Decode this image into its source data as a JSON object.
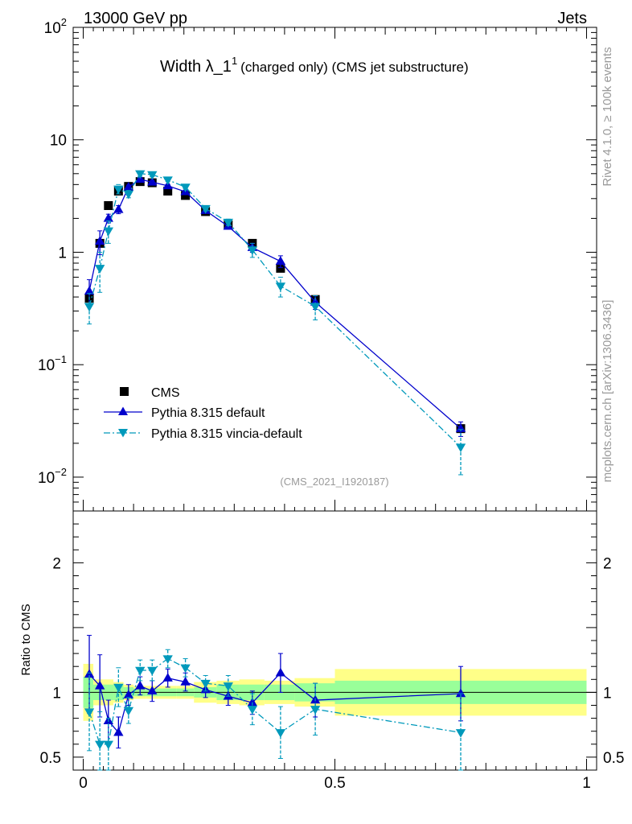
{
  "header": {
    "left": "13000 GeV pp",
    "right": "Jets"
  },
  "side_labels": {
    "rivet": "Rivet 4.1.0, ≥ 100k events",
    "mcplots": "mcplots.cern.ch [arXiv:1306.3436]"
  },
  "chart_data": {
    "type": "line",
    "title_main": "Width λ_1",
    "title_sup": "1",
    "title_rest": "(charged only) (CMS jet substructure)",
    "analysis_id": "(CMS_2021_I1920187)",
    "ylabel_ratio": "Ratio to CMS",
    "top": {
      "yscale": "log",
      "ylim": [
        0.005,
        100
      ],
      "y_ticks": [
        {
          "value": 100,
          "base": "10",
          "exp": "2"
        },
        {
          "value": 10,
          "base": "10",
          "exp": ""
        },
        {
          "value": 1,
          "base": "1",
          "exp": ""
        },
        {
          "value": 0.1,
          "base": "10",
          "exp": "−1"
        },
        {
          "value": 0.01,
          "base": "10",
          "exp": "−2"
        }
      ]
    },
    "ratio": {
      "ylim": [
        0.4,
        2.4
      ],
      "y_ticks": [
        {
          "value": 0.5,
          "label": "0.5"
        },
        {
          "value": 1,
          "label": "1"
        },
        {
          "value": 2,
          "label": "2"
        }
      ]
    },
    "xlim": [
      -0.02,
      1.02
    ],
    "x_ticks": [
      {
        "value": 0,
        "label": "0"
      },
      {
        "value": 0.5,
        "label": "0.5"
      },
      {
        "value": 1,
        "label": "1"
      }
    ],
    "bins": [
      [
        0,
        0.02
      ],
      [
        0.02,
        0.04
      ],
      [
        0.04,
        0.06
      ],
      [
        0.06,
        0.08
      ],
      [
        0.08,
        0.1
      ],
      [
        0.1,
        0.125
      ],
      [
        0.125,
        0.15
      ],
      [
        0.15,
        0.185
      ],
      [
        0.185,
        0.22
      ],
      [
        0.22,
        0.265
      ],
      [
        0.265,
        0.31
      ],
      [
        0.31,
        0.36
      ],
      [
        0.36,
        0.42
      ],
      [
        0.42,
        0.5
      ],
      [
        0.5,
        1.0
      ]
    ],
    "x": [
      0.012,
      0.033,
      0.05,
      0.07,
      0.09,
      0.113,
      0.137,
      0.168,
      0.203,
      0.243,
      0.288,
      0.336,
      0.392,
      0.461,
      0.75
    ],
    "band_inner": [
      0.12,
      0.06,
      0.06,
      0.06,
      0.04,
      0.03,
      0.03,
      0.03,
      0.03,
      0.04,
      0.06,
      0.06,
      0.06,
      0.07,
      0.09
    ],
    "band_outer": [
      0.22,
      0.1,
      0.1,
      0.08,
      0.06,
      0.05,
      0.05,
      0.05,
      0.05,
      0.08,
      0.09,
      0.1,
      0.09,
      0.11,
      0.18
    ],
    "series": [
      {
        "name": "CMS",
        "style": "data",
        "values": [
          0.39,
          1.2,
          2.6,
          3.5,
          3.85,
          4.25,
          4.15,
          3.5,
          3.2,
          2.3,
          1.75,
          1.2,
          0.72,
          0.38,
          0.027
        ]
      },
      {
        "name": "Pythia 8.315 default",
        "style": "solid",
        "color": "#0000cc",
        "marker": "triangle-up",
        "values": [
          0.45,
          1.25,
          2.0,
          2.4,
          3.8,
          4.45,
          4.2,
          3.9,
          3.45,
          2.35,
          1.7,
          1.1,
          0.83,
          0.36,
          0.027
        ],
        "err": [
          0.12,
          0.3,
          0.18,
          0.2,
          0.15,
          0.15,
          0.15,
          0.12,
          0.12,
          0.1,
          0.1,
          0.1,
          0.1,
          0.05,
          0.004
        ],
        "ratio": [
          1.14,
          1.05,
          0.78,
          0.69,
          0.98,
          1.05,
          1.01,
          1.11,
          1.08,
          1.02,
          0.97,
          0.92,
          1.15,
          0.94,
          0.99
        ],
        "ratio_err": [
          0.3,
          0.24,
          0.16,
          0.12,
          0.08,
          0.07,
          0.08,
          0.07,
          0.07,
          0.06,
          0.07,
          0.09,
          0.15,
          0.13,
          0.21
        ]
      },
      {
        "name": "Pythia 8.315 vincia-default",
        "style": "dashdot",
        "color": "#0099bb",
        "marker": "triangle-down",
        "values": [
          0.33,
          0.72,
          1.55,
          3.65,
          3.3,
          5.0,
          4.9,
          4.4,
          3.8,
          2.45,
          1.85,
          1.05,
          0.5,
          0.33,
          0.0185
        ],
        "err": [
          0.1,
          0.28,
          0.35,
          0.35,
          0.25,
          0.25,
          0.2,
          0.15,
          0.12,
          0.12,
          0.12,
          0.15,
          0.1,
          0.08,
          0.008
        ],
        "ratio": [
          0.85,
          0.6,
          0.6,
          1.04,
          0.86,
          1.17,
          1.17,
          1.26,
          1.19,
          1.07,
          1.05,
          0.87,
          0.69,
          0.87,
          0.69
        ],
        "ratio_err": [
          0.3,
          0.25,
          0.2,
          0.15,
          0.1,
          0.08,
          0.08,
          0.07,
          0.07,
          0.06,
          0.08,
          0.12,
          0.2,
          0.2,
          0.3
        ]
      }
    ]
  }
}
